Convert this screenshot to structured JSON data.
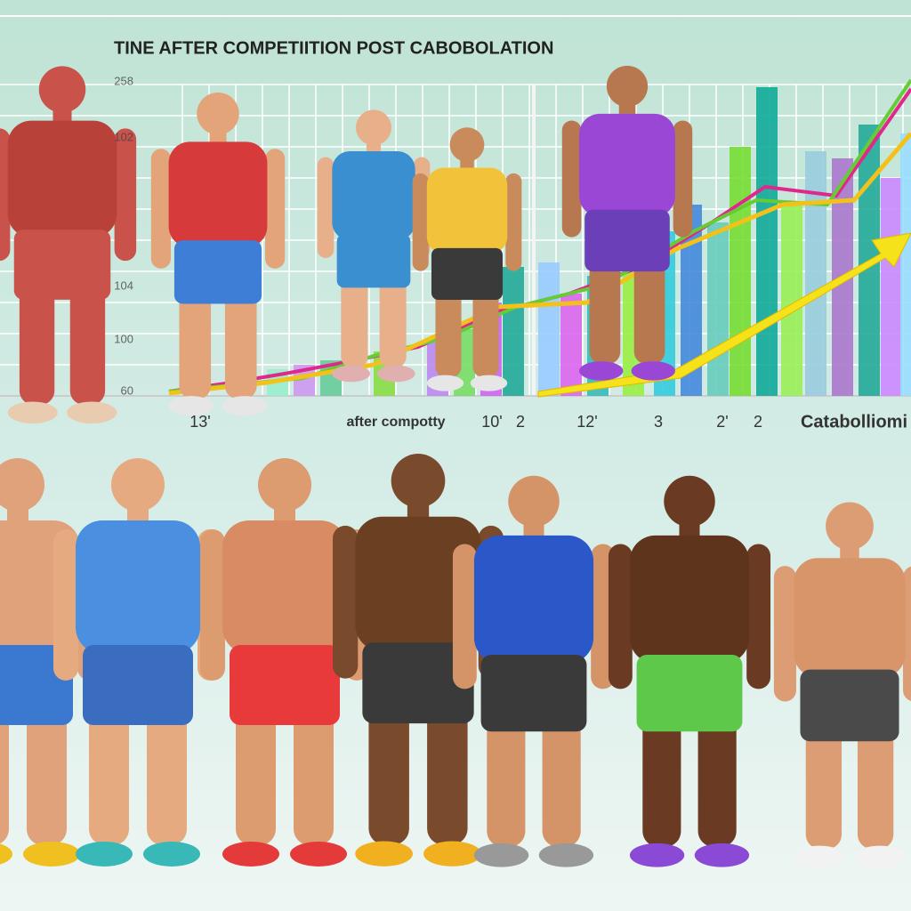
{
  "header": {
    "title": "TINE AFTER COMPETIITION POST CABOBOLATION"
  },
  "axis": {
    "y_labels": [
      "258",
      "102",
      "104",
      "100",
      "60"
    ],
    "x_labels": [
      "13'",
      "after compotty",
      "10'",
      "2",
      "12'",
      "3",
      "2'",
      "2",
      "Catabolliomi"
    ]
  }
}
